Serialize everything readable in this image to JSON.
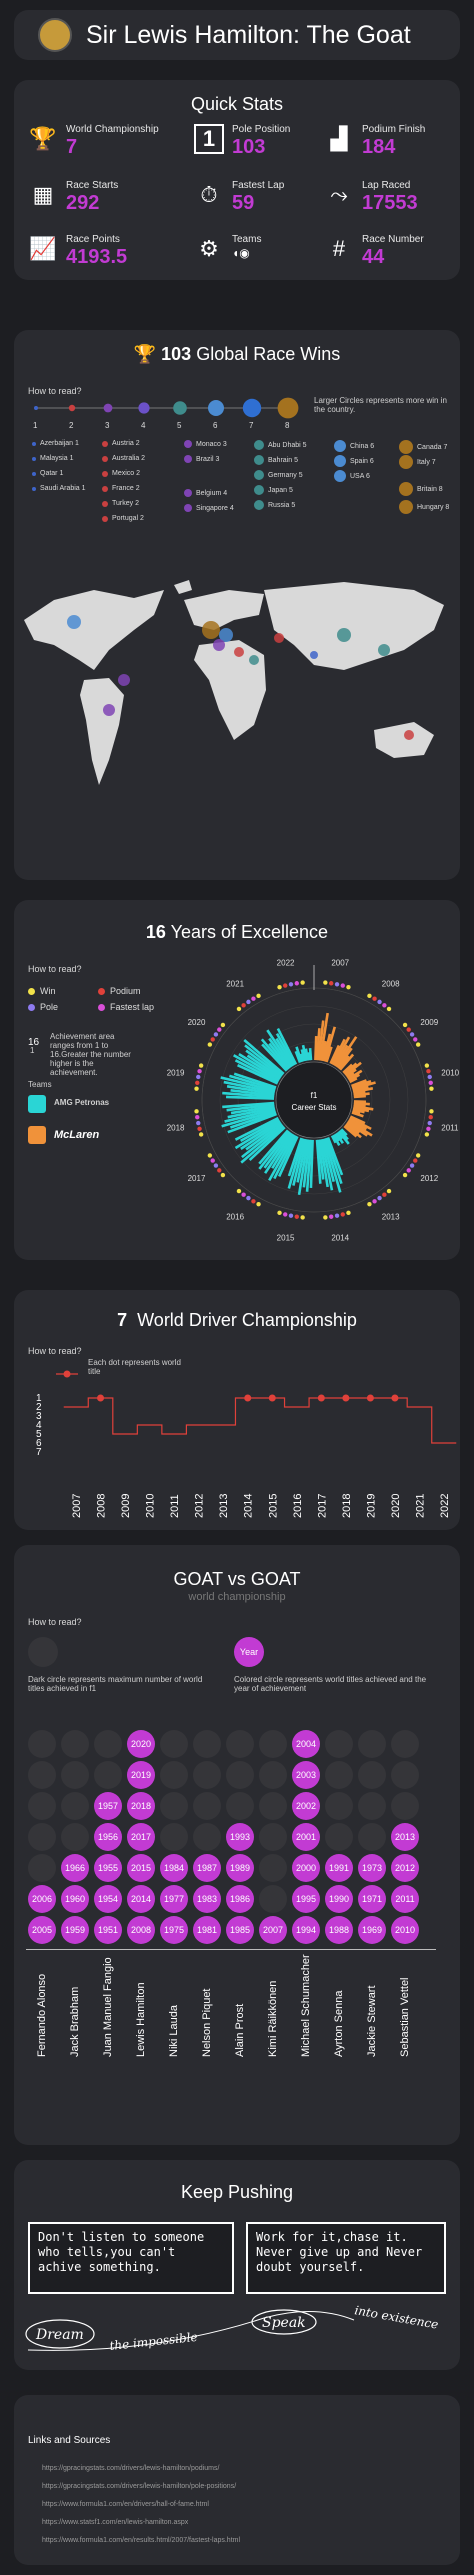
{
  "header": {
    "title": "Sir Lewis Hamilton: The Goat"
  },
  "quick_stats": {
    "title": "Quick Stats",
    "items": [
      {
        "label": "World Championship",
        "value": "7",
        "icon": "laurel-trophy-icon"
      },
      {
        "label": "Pole Position",
        "value": "103",
        "icon": "pole-one-icon"
      },
      {
        "label": "Podium Finish",
        "value": "184",
        "icon": "podium-icon"
      },
      {
        "label": "Race Starts",
        "value": "292",
        "icon": "starting-grid-icon"
      },
      {
        "label": "Fastest Lap",
        "value": "59",
        "icon": "stopwatch-icon"
      },
      {
        "label": "Lap Raced",
        "value": "17553",
        "icon": "race-track-icon"
      },
      {
        "label": "Race Points",
        "value": "4193.5",
        "icon": "line-chart-icon"
      },
      {
        "label": "Teams",
        "value": "",
        "icon": "team-logos-icon"
      },
      {
        "label": "Race Number",
        "value": "44",
        "icon": "hash-icon"
      }
    ]
  },
  "wins": {
    "title_num": "103",
    "title_text": "Global Race Wins",
    "howto": "How to read?",
    "scale": [
      "1",
      "2",
      "3",
      "4",
      "5",
      "6",
      "7",
      "8"
    ],
    "legend_note": "Larger Circles represents more win in the country.",
    "countries": [
      [
        "Azerbaijan 1",
        "Malaysia 1",
        "Qatar 1",
        "Saudi Arabia 1"
      ],
      [
        "Austria 2",
        "Australia 2",
        "Mexico 2",
        "France 2",
        "Turkey 2",
        "Portugal 2"
      ],
      [
        "Monaco 3",
        "Brazil 3",
        "Belgium 4",
        "Singapore 4"
      ],
      [
        "Abu Dhabi 5",
        "Bahrain 5",
        "Germany 5",
        "Japan 5",
        "Russia 5"
      ],
      [
        "China 6",
        "Spain 6",
        "USA 6"
      ],
      [
        "Canada 7",
        "Italy 7",
        "Britain 8",
        "Hungary 8"
      ]
    ]
  },
  "excellence": {
    "title_num": "16",
    "title_text": "Years of Excellence",
    "howto": "How to read?",
    "legend": [
      {
        "label": "Win",
        "color": "#f2e24a"
      },
      {
        "label": "Podium",
        "color": "#e0413a"
      },
      {
        "label": "Pole",
        "color": "#8e7bf0"
      },
      {
        "label": "Fastest lap",
        "color": "#d94fd8"
      }
    ],
    "note_num": "16",
    "note_small": "1",
    "note": "Achievement area ranges from 1 to 16.Greater the number higher is the achievement.",
    "teams_label": "Teams",
    "team_names": [
      "AMG Petronas",
      "McLaren"
    ],
    "center": "f1 Career Stats",
    "years": [
      "2007",
      "2008",
      "2009",
      "2010",
      "2011",
      "2012",
      "2013",
      "2014",
      "2015",
      "2016",
      "2017",
      "2018",
      "2019",
      "2020",
      "2021",
      "2022"
    ]
  },
  "championship": {
    "title_num": "7",
    "title_text": "World Driver Championship",
    "howto": "How to read?",
    "note": "Each dot represents world title",
    "ranks": [
      "1",
      "2",
      "3",
      "4",
      "5",
      "6",
      "7"
    ],
    "years": [
      "2007",
      "2008",
      "2009",
      "2010",
      "2011",
      "2012",
      "2013",
      "2014",
      "2015",
      "2016",
      "2017",
      "2018",
      "2019",
      "2020",
      "2021",
      "2022"
    ],
    "positions": [
      2,
      1,
      5,
      4,
      5,
      4,
      4,
      1,
      1,
      2,
      1,
      1,
      1,
      1,
      2,
      6
    ],
    "titles": [
      "2008",
      "2014",
      "2015",
      "2017",
      "2018",
      "2019",
      "2020"
    ]
  },
  "goat": {
    "title": "GOAT vs GOAT",
    "subtitle": "world championship",
    "howto": "How to read?",
    "dark_note": "Dark  circle represents maximum number of world titles achieved in f1",
    "year_label": "Year",
    "colored_note": "Colored  circle represents  world titles achieved and the year of achievement",
    "drivers": [
      {
        "name": "Fernando Alonso",
        "titles": [
          "2005",
          "2006"
        ]
      },
      {
        "name": "Jack Brabham",
        "titles": [
          "1959",
          "1960",
          "1966"
        ]
      },
      {
        "name": "Juan Manuel Fangio",
        "titles": [
          "1951",
          "1954",
          "1955",
          "1956",
          "1957"
        ]
      },
      {
        "name": "Lewis Hamilton",
        "titles": [
          "2008",
          "2014",
          "2015",
          "2017",
          "2018",
          "2019",
          "2020"
        ]
      },
      {
        "name": "Niki Lauda",
        "titles": [
          "1975",
          "1977",
          "1984"
        ]
      },
      {
        "name": "Nelson Piquet",
        "titles": [
          "1981",
          "1983",
          "1987"
        ]
      },
      {
        "name": "Alain Prost",
        "titles": [
          "1985",
          "1986",
          "1989",
          "1993"
        ]
      },
      {
        "name": "Kimi Räikkönen",
        "titles": [
          "2007"
        ]
      },
      {
        "name": "Michael Schumacher",
        "titles": [
          "1994",
          "1995",
          "2000",
          "2001",
          "2002",
          "2003",
          "2004"
        ]
      },
      {
        "name": "Ayrton Senna",
        "titles": [
          "1988",
          "1990",
          "1991"
        ]
      },
      {
        "name": "Jackie Stewart",
        "titles": [
          "1969",
          "1971",
          "1973"
        ]
      },
      {
        "name": "Sebastian Vettel",
        "titles": [
          "2010",
          "2011",
          "2012",
          "2013"
        ]
      }
    ]
  },
  "keep": {
    "title": "Keep Pushing",
    "quote1": "Don't listen to someone who tells,you can't achive something.",
    "quote2": "Work for it,chase it. Never give up and Never doubt yourself.",
    "script": [
      "Dream",
      "the impossible",
      "Speak",
      "into existence"
    ]
  },
  "links": {
    "title": "Links and Sources",
    "items": [
      "https://gpracingstats.com/drivers/lewis-hamilton/podiums/",
      "https://gpracingstats.com/drivers/lewis-hamilton/pole-positions/",
      "https://www.formula1.com/en/drivers/hall-of-fame.html",
      "https://www.statsf1.com/en/lewis-hamilton.aspx",
      "https://www.formula1.com/en/results.html/2007/fastest-laps.html"
    ]
  },
  "colors": {
    "accent": "#c23bd3",
    "background": "#1d1e22",
    "card": "#2a2b30",
    "teal": "#2ad5d5",
    "orange": "#f0923a",
    "red": "#e0413a"
  }
}
